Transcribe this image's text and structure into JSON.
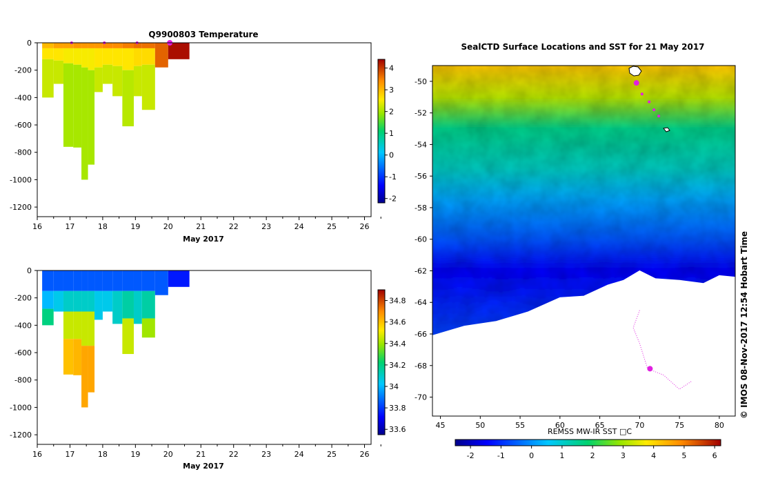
{
  "chart_data": [
    {
      "type": "heatmap",
      "title": "Q9900803  Temperature",
      "xlabel": "May 2017",
      "ylabel": "",
      "xlim": [
        16,
        26.2
      ],
      "ylim": [
        -1270,
        0
      ],
      "x_ticks": [
        "16",
        "17",
        "18",
        "19",
        "20",
        "21",
        "22",
        "23",
        "24",
        "25",
        "26"
      ],
      "y_ticks": [
        "0",
        "-200",
        "-400",
        "-600",
        "-800",
        "-1000",
        "-1200"
      ],
      "colorbar": {
        "range": [
          -2.2,
          4.4
        ],
        "ticks": [
          "-2",
          "-1",
          "0",
          "1",
          "2",
          "3",
          "4"
        ]
      },
      "profiles": [
        {
          "x0": 16.15,
          "x1": 16.5,
          "depth": 400,
          "segments": [
            {
              "to": 40,
              "value": 3.0
            },
            {
              "to": 120,
              "value": 2.6
            },
            {
              "to": 400,
              "value": 2.2
            }
          ]
        },
        {
          "x0": 16.5,
          "x1": 16.8,
          "depth": 300,
          "segments": [
            {
              "to": 40,
              "value": 3.2
            },
            {
              "to": 130,
              "value": 2.6
            },
            {
              "to": 300,
              "value": 2.2
            }
          ]
        },
        {
          "x0": 16.8,
          "x1": 17.1,
          "depth": 760,
          "segments": [
            {
              "to": 40,
              "value": 3.2
            },
            {
              "to": 150,
              "value": 2.5
            },
            {
              "to": 760,
              "value": 2.0
            }
          ]
        },
        {
          "x0": 17.1,
          "x1": 17.35,
          "depth": 765,
          "segments": [
            {
              "to": 40,
              "value": 3.3
            },
            {
              "to": 160,
              "value": 2.5
            },
            {
              "to": 765,
              "value": 2.0
            }
          ]
        },
        {
          "x0": 17.35,
          "x1": 17.55,
          "depth": 1000,
          "segments": [
            {
              "to": 40,
              "value": 3.3
            },
            {
              "to": 180,
              "value": 2.5
            },
            {
              "to": 1000,
              "value": 2.0
            }
          ]
        },
        {
          "x0": 17.55,
          "x1": 17.75,
          "depth": 890,
          "segments": [
            {
              "to": 40,
              "value": 3.3
            },
            {
              "to": 200,
              "value": 2.5
            },
            {
              "to": 890,
              "value": 2.0
            }
          ]
        },
        {
          "x0": 17.75,
          "x1": 18.0,
          "depth": 360,
          "segments": [
            {
              "to": 40,
              "value": 3.3
            },
            {
              "to": 180,
              "value": 2.6
            },
            {
              "to": 360,
              "value": 2.2
            }
          ]
        },
        {
          "x0": 18.0,
          "x1": 18.3,
          "depth": 300,
          "segments": [
            {
              "to": 40,
              "value": 3.4
            },
            {
              "to": 160,
              "value": 2.6
            },
            {
              "to": 300,
              "value": 2.2
            }
          ]
        },
        {
          "x0": 18.3,
          "x1": 18.6,
          "depth": 390,
          "segments": [
            {
              "to": 40,
              "value": 3.4
            },
            {
              "to": 170,
              "value": 2.6
            },
            {
              "to": 390,
              "value": 2.2
            }
          ]
        },
        {
          "x0": 18.6,
          "x1": 18.95,
          "depth": 610,
          "segments": [
            {
              "to": 40,
              "value": 3.5
            },
            {
              "to": 200,
              "value": 2.6
            },
            {
              "to": 610,
              "value": 2.1
            }
          ]
        },
        {
          "x0": 18.95,
          "x1": 19.2,
          "depth": 390,
          "segments": [
            {
              "to": 40,
              "value": 3.6
            },
            {
              "to": 170,
              "value": 2.7
            },
            {
              "to": 390,
              "value": 2.2
            }
          ]
        },
        {
          "x0": 19.2,
          "x1": 19.6,
          "depth": 490,
          "segments": [
            {
              "to": 40,
              "value": 3.6
            },
            {
              "to": 160,
              "value": 2.7
            },
            {
              "to": 490,
              "value": 2.2
            }
          ]
        },
        {
          "x0": 19.6,
          "x1": 20.0,
          "depth": 180,
          "segments": [
            {
              "to": 180,
              "value": 3.7
            }
          ]
        },
        {
          "x0": 20.0,
          "x1": 20.65,
          "depth": 120,
          "segments": [
            {
              "to": 120,
              "value": 4.3
            }
          ]
        }
      ],
      "surface_markers_x": [
        17.05,
        18.05,
        19.05,
        20.05
      ]
    },
    {
      "type": "heatmap",
      "title": "",
      "xlabel": "May 2017",
      "ylabel": "",
      "xlim": [
        16,
        26.2
      ],
      "ylim": [
        -1270,
        0
      ],
      "x_ticks": [
        "16",
        "17",
        "18",
        "19",
        "20",
        "21",
        "22",
        "23",
        "24",
        "25",
        "26"
      ],
      "y_ticks": [
        "0",
        "-200",
        "-400",
        "-600",
        "-800",
        "-1000",
        "-1200"
      ],
      "colorbar": {
        "range": [
          33.55,
          34.9
        ],
        "ticks": [
          "33.6",
          "33.8",
          "34",
          "34.2",
          "34.4",
          "34.6",
          "34.8"
        ]
      },
      "profiles": [
        {
          "x0": 16.15,
          "x1": 16.5,
          "depth": 400,
          "segments": [
            {
              "to": 150,
              "value": 33.85
            },
            {
              "to": 280,
              "value": 34.0
            },
            {
              "to": 400,
              "value": 34.2
            }
          ]
        },
        {
          "x0": 16.5,
          "x1": 16.8,
          "depth": 300,
          "segments": [
            {
              "to": 150,
              "value": 33.85
            },
            {
              "to": 300,
              "value": 34.05
            }
          ]
        },
        {
          "x0": 16.8,
          "x1": 17.1,
          "depth": 760,
          "segments": [
            {
              "to": 150,
              "value": 33.85
            },
            {
              "to": 300,
              "value": 34.1
            },
            {
              "to": 500,
              "value": 34.45
            },
            {
              "to": 760,
              "value": 34.6
            }
          ]
        },
        {
          "x0": 17.1,
          "x1": 17.35,
          "depth": 765,
          "segments": [
            {
              "to": 150,
              "value": 33.85
            },
            {
              "to": 300,
              "value": 34.1
            },
            {
              "to": 500,
              "value": 34.45
            },
            {
              "to": 765,
              "value": 34.62
            }
          ]
        },
        {
          "x0": 17.35,
          "x1": 17.55,
          "depth": 1000,
          "segments": [
            {
              "to": 150,
              "value": 33.85
            },
            {
              "to": 300,
              "value": 34.1
            },
            {
              "to": 550,
              "value": 34.45
            },
            {
              "to": 1000,
              "value": 34.65
            }
          ]
        },
        {
          "x0": 17.55,
          "x1": 17.75,
          "depth": 890,
          "segments": [
            {
              "to": 150,
              "value": 33.85
            },
            {
              "to": 300,
              "value": 34.1
            },
            {
              "to": 550,
              "value": 34.45
            },
            {
              "to": 890,
              "value": 34.65
            }
          ]
        },
        {
          "x0": 17.75,
          "x1": 18.0,
          "depth": 360,
          "segments": [
            {
              "to": 150,
              "value": 33.85
            },
            {
              "to": 360,
              "value": 34.05
            }
          ]
        },
        {
          "x0": 18.0,
          "x1": 18.3,
          "depth": 300,
          "segments": [
            {
              "to": 150,
              "value": 33.85
            },
            {
              "to": 300,
              "value": 34.05
            }
          ]
        },
        {
          "x0": 18.3,
          "x1": 18.6,
          "depth": 390,
          "segments": [
            {
              "to": 150,
              "value": 33.85
            },
            {
              "to": 390,
              "value": 34.1
            }
          ]
        },
        {
          "x0": 18.6,
          "x1": 18.95,
          "depth": 610,
          "segments": [
            {
              "to": 150,
              "value": 33.85
            },
            {
              "to": 350,
              "value": 34.15
            },
            {
              "to": 610,
              "value": 34.45
            }
          ]
        },
        {
          "x0": 18.95,
          "x1": 19.2,
          "depth": 390,
          "segments": [
            {
              "to": 150,
              "value": 33.85
            },
            {
              "to": 390,
              "value": 34.1
            }
          ]
        },
        {
          "x0": 19.2,
          "x1": 19.6,
          "depth": 490,
          "segments": [
            {
              "to": 150,
              "value": 33.85
            },
            {
              "to": 350,
              "value": 34.15
            },
            {
              "to": 490,
              "value": 34.4
            }
          ]
        },
        {
          "x0": 19.6,
          "x1": 20.0,
          "depth": 180,
          "segments": [
            {
              "to": 180,
              "value": 33.85
            }
          ]
        },
        {
          "x0": 20.0,
          "x1": 20.65,
          "depth": 120,
          "segments": [
            {
              "to": 120,
              "value": 33.75
            }
          ]
        }
      ]
    },
    {
      "type": "heatmap",
      "title": "SealCTD Surface Locations and SST for 21 May 2017",
      "xlabel": "",
      "ylabel": "",
      "xlim": [
        44,
        82
      ],
      "ylim": [
        -71.2,
        -49
      ],
      "x_ticks": [
        "45",
        "50",
        "55",
        "60",
        "65",
        "70",
        "75",
        "80"
      ],
      "y_ticks": [
        "-50",
        "-52",
        "-54",
        "-56",
        "-58",
        "-60",
        "-62",
        "-64",
        "-66",
        "-68",
        "-70"
      ],
      "colorbar": {
        "label": "REMSS MW-IR SST □C",
        "range": [
          -2.5,
          6.2
        ],
        "ticks": [
          "-2",
          "-1",
          "0",
          "1",
          "2",
          "3",
          "4",
          "5",
          "6"
        ]
      },
      "sst_latitude_profile": [
        {
          "lat": -49.0,
          "value": 4.2
        },
        {
          "lat": -51.0,
          "value": 3.2
        },
        {
          "lat": -53.0,
          "value": 1.6
        },
        {
          "lat": -55.5,
          "value": 1.1
        },
        {
          "lat": -57.5,
          "value": 0.2
        },
        {
          "lat": -60.0,
          "value": -0.6
        },
        {
          "lat": -62.0,
          "value": -1.5
        },
        {
          "lat": -64.0,
          "value": -1.1
        },
        {
          "lat": -66.0,
          "value": -0.8
        }
      ],
      "ice_edge": [
        {
          "lon": 44,
          "lat": -66.1
        },
        {
          "lon": 48,
          "lat": -65.5
        },
        {
          "lon": 52,
          "lat": -65.2
        },
        {
          "lon": 56,
          "lat": -64.6
        },
        {
          "lon": 60,
          "lat": -63.7
        },
        {
          "lon": 63,
          "lat": -63.6
        },
        {
          "lon": 66,
          "lat": -62.9
        },
        {
          "lon": 68,
          "lat": -62.6
        },
        {
          "lon": 70,
          "lat": -62.0
        },
        {
          "lon": 72,
          "lat": -62.5
        },
        {
          "lon": 75,
          "lat": -62.6
        },
        {
          "lon": 78,
          "lat": -62.8
        },
        {
          "lon": 80,
          "lat": -62.3
        },
        {
          "lon": 82,
          "lat": -62.4
        }
      ],
      "seal_positions": [
        {
          "lon": 69.6,
          "lat": -50.1
        },
        {
          "lon": 70.3,
          "lat": -50.8
        },
        {
          "lon": 71.2,
          "lat": -51.3
        },
        {
          "lon": 71.8,
          "lat": -51.8
        },
        {
          "lon": 72.4,
          "lat": -52.2
        }
      ],
      "seal_track": [
        {
          "lon": 70.0,
          "lat": -64.5
        },
        {
          "lon": 69.2,
          "lat": -65.6
        },
        {
          "lon": 70.0,
          "lat": -66.6
        },
        {
          "lon": 71.0,
          "lat": -68.2
        },
        {
          "lon": 73.0,
          "lat": -68.6
        },
        {
          "lon": 75.0,
          "lat": -69.5
        },
        {
          "lon": 76.5,
          "lat": -69.0
        }
      ],
      "track_hotspots": [
        {
          "lon": 71.3,
          "lat": -68.2
        }
      ]
    }
  ],
  "timestamp": "© IMOS 08-Nov-2017 12:54 Hobart Time"
}
